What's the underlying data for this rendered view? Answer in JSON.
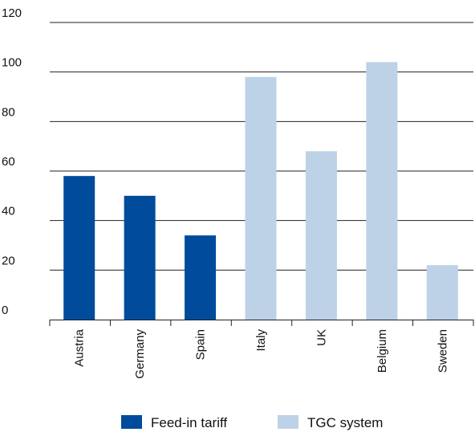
{
  "chart_data": {
    "type": "bar",
    "title": "",
    "xlabel": "",
    "ylabel": "",
    "ylim": [
      0,
      120
    ],
    "yticks": [
      0,
      20,
      40,
      60,
      80,
      100,
      120
    ],
    "grid": true,
    "legend_position": "bottom",
    "categories": [
      "Austria",
      "Germany",
      "Spain",
      "Italy",
      "UK",
      "Belgium",
      "Sweden"
    ],
    "series": [
      {
        "name": "Feed-in tariff",
        "color": "#004b9b",
        "values": [
          58,
          50,
          34,
          null,
          null,
          null,
          null
        ]
      },
      {
        "name": "TGC system",
        "color": "#bdd2e6",
        "values": [
          null,
          null,
          null,
          98,
          68,
          104,
          22
        ]
      }
    ]
  }
}
